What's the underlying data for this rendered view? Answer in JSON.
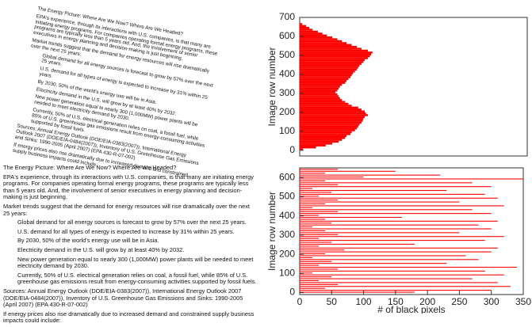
{
  "document_text": {
    "paragraphs": [
      "The Energy Picture: Where Are We Now? Where Are We Headed?",
      "EPA's experience, through its interactions with U.S. companies, is that many are initiating energy programs. For companies operating formal energy programs, these programs are typically less than 5 years old. And, the involvement of senior executives in energy planning and decision-making is just beginning.",
      "Market trends suggest that the demand for energy resources will rise dramatically over the next 25 years:",
      "Global demand for all energy sources is forecast to grow by 57% over the next 25 years.",
      "U.S. demand for all types of energy is expected to increase by 31% within 25 years.",
      "By 2030, 50% of the world's energy use will be in Asia.",
      "Electricity demand in the U.S. will grow by at least 40% by 2032.",
      "New power generation equal to nearly 300 (1,000MW) power plants will be needed to meet electricity demand by 2030.",
      "Currently, 50% of U.S. electrical generation relies on coal, a fossil fuel, while 85% of U.S. greenhouse gas emissions result from energy-consuming activities supported by fossil fuels.",
      "Sources: Annual Energy Outlook (DOE/EIA-0383(2007)), International Energy Outlook 2007 (DOE/EIA-0484(2007)), Inventory of U.S. Greenhouse Gas Emissions and Sinks: 1990-2005 (April 2007) (EPA 430-R-07-002)",
      "If energy prices also rise dramatically due to increased demand and constrained supply business impacts could include:"
    ]
  },
  "chart_data": [
    {
      "type": "barh",
      "ylabel": "Image row number",
      "color": "#ff0000",
      "y": [
        0,
        10,
        20,
        30,
        40,
        50,
        60,
        70,
        80,
        90,
        100,
        110,
        120,
        130,
        140,
        150,
        160,
        170,
        180,
        190,
        200,
        210,
        220,
        230,
        240,
        250,
        260,
        270,
        280,
        290,
        300,
        310,
        320,
        330,
        340,
        350,
        360,
        370,
        380,
        390,
        400,
        410,
        420,
        430,
        440,
        450,
        460,
        470,
        480,
        490,
        500,
        510,
        520,
        530,
        540,
        550,
        560,
        570,
        580,
        590,
        600,
        610,
        620,
        630,
        640,
        650,
        660
      ],
      "values": [
        5,
        25,
        40,
        50,
        60,
        65,
        70,
        72,
        78,
        80,
        85,
        88,
        90,
        92,
        95,
        97,
        98,
        100,
        105,
        102,
        100,
        95,
        90,
        80,
        75,
        70,
        65,
        62,
        60,
        58,
        55,
        58,
        60,
        62,
        65,
        70,
        72,
        75,
        78,
        80,
        82,
        85,
        88,
        90,
        92,
        95,
        98,
        100,
        105,
        108,
        110,
        112,
        105,
        95,
        88,
        80,
        72,
        65,
        58,
        50,
        42,
        35,
        28,
        20,
        15,
        10,
        4
      ],
      "xlim": [
        0,
        350
      ],
      "ylim": [
        -30,
        700
      ],
      "yticks": [
        0,
        100,
        200,
        300,
        400,
        500,
        600,
        700
      ]
    },
    {
      "type": "barh",
      "ylabel": "Image row number",
      "xlabel": "# of black pixels",
      "color": "#ff0000",
      "y": [
        0,
        10,
        20,
        30,
        40,
        50,
        60,
        70,
        80,
        90,
        100,
        110,
        120,
        130,
        140,
        150,
        160,
        170,
        180,
        190,
        200,
        210,
        220,
        230,
        240,
        250,
        260,
        270,
        280,
        290,
        300,
        310,
        320,
        330,
        340,
        350,
        360,
        370,
        380,
        390,
        400,
        410,
        420,
        430,
        440,
        450,
        460,
        470,
        480,
        490,
        500,
        510,
        520,
        530,
        540,
        550,
        560,
        570,
        580,
        590,
        600,
        610,
        620,
        630,
        640
      ],
      "values": [
        180,
        300,
        40,
        330,
        60,
        310,
        30,
        270,
        50,
        320,
        20,
        290,
        60,
        340,
        30,
        230,
        50,
        280,
        20,
        260,
        40,
        300,
        70,
        310,
        30,
        180,
        50,
        290,
        30,
        320,
        60,
        250,
        40,
        300,
        20,
        280,
        50,
        310,
        40,
        160,
        30,
        300,
        60,
        270,
        20,
        320,
        40,
        250,
        60,
        310,
        30,
        290,
        50,
        230,
        20,
        300,
        60,
        270,
        40,
        350,
        100,
        220,
        40,
        150,
        60
      ],
      "xlim": [
        0,
        350
      ],
      "ylim": [
        -10,
        650
      ],
      "xticks": [
        0,
        50,
        100,
        150,
        200,
        250,
        300,
        350
      ],
      "yticks": [
        0,
        100,
        200,
        300,
        400,
        500,
        600
      ]
    }
  ]
}
